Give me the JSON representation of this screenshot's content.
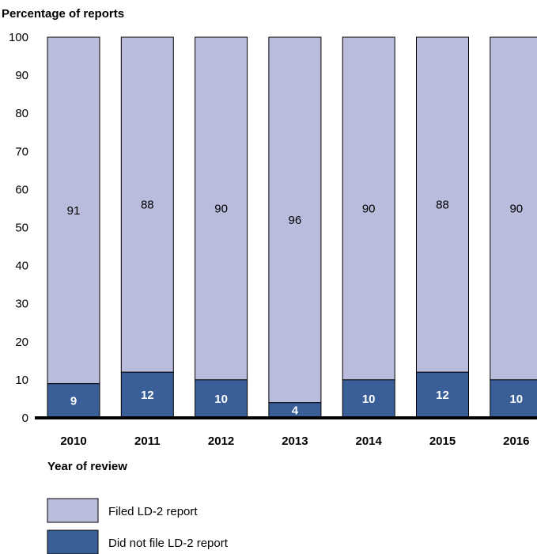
{
  "chart_data": {
    "type": "bar",
    "stacked": true,
    "ylabel": "Percentage of reports",
    "xlabel": "Year of review",
    "ylim": [
      0,
      100
    ],
    "yticks": [
      0,
      10,
      20,
      30,
      40,
      50,
      60,
      70,
      80,
      90,
      100
    ],
    "categories": [
      "2010",
      "2011",
      "2012",
      "2013",
      "2014",
      "2015",
      "2016"
    ],
    "series": [
      {
        "name": "Did not file LD-2 report",
        "color": "#3a5f98",
        "values": [
          9,
          12,
          10,
          4,
          10,
          12,
          10
        ]
      },
      {
        "name": "Filed LD-2 report",
        "color": "#b9bcdd",
        "values": [
          91,
          88,
          90,
          96,
          90,
          88,
          90
        ]
      }
    ],
    "legend": "bottom-left",
    "grid": false
  }
}
